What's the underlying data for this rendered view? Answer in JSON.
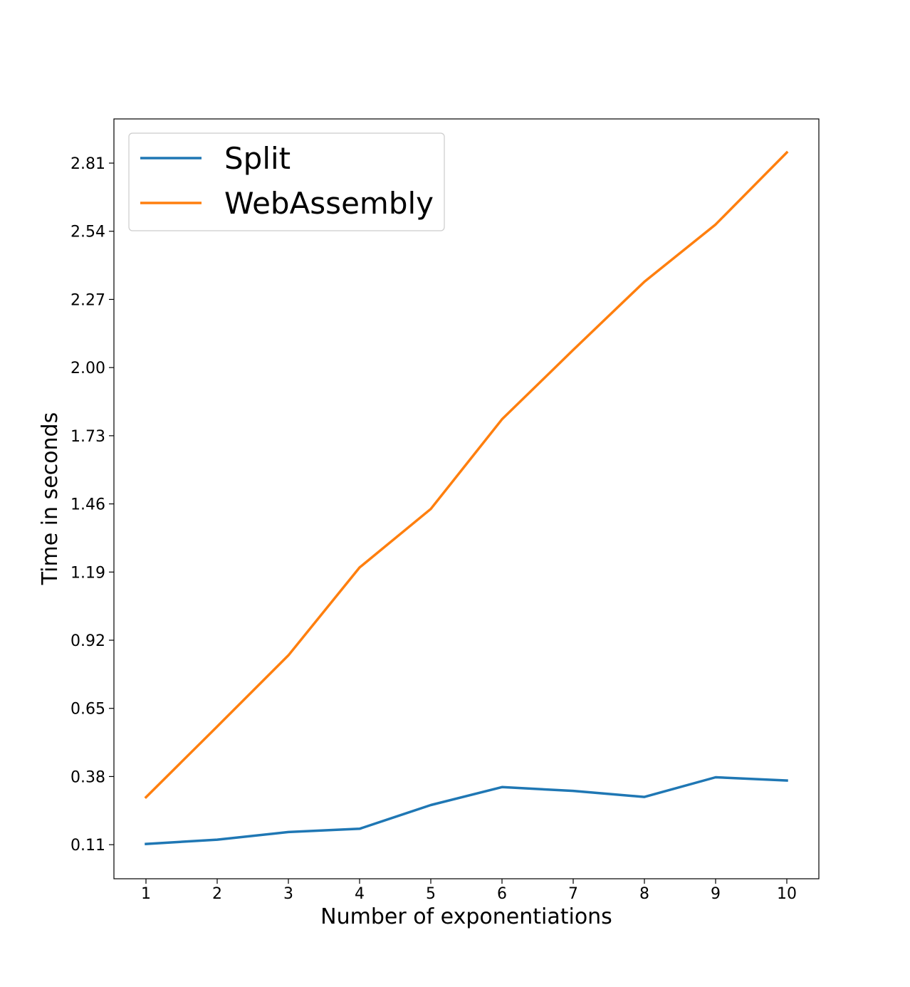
{
  "chart_data": {
    "type": "line",
    "title": "",
    "xlabel": "Number of exponentiations",
    "ylabel": "Time in seconds",
    "x": [
      1,
      2,
      3,
      4,
      5,
      6,
      7,
      8,
      9,
      10
    ],
    "x_ticks": [
      "1",
      "2",
      "3",
      "4",
      "5",
      "6",
      "7",
      "8",
      "9",
      "10"
    ],
    "y_ticks": [
      "0.11",
      "0.38",
      "0.65",
      "0.92",
      "1.19",
      "1.46",
      "1.73",
      "2.00",
      "2.27",
      "2.54",
      "2.81"
    ],
    "xlim": [
      0.55,
      10.45
    ],
    "ylim": [
      -0.025,
      2.985
    ],
    "grid": false,
    "legend_position": "top-left",
    "series": [
      {
        "name": "Split",
        "color": "#1f77b4",
        "values": [
          0.113,
          0.13,
          0.16,
          0.173,
          0.267,
          0.338,
          0.323,
          0.299,
          0.377,
          0.364
        ]
      },
      {
        "name": "WebAssembly",
        "color": "#ff7f0e",
        "values": [
          0.298,
          0.578,
          0.86,
          1.208,
          1.44,
          1.795,
          2.07,
          2.34,
          2.567,
          2.852
        ]
      }
    ]
  }
}
